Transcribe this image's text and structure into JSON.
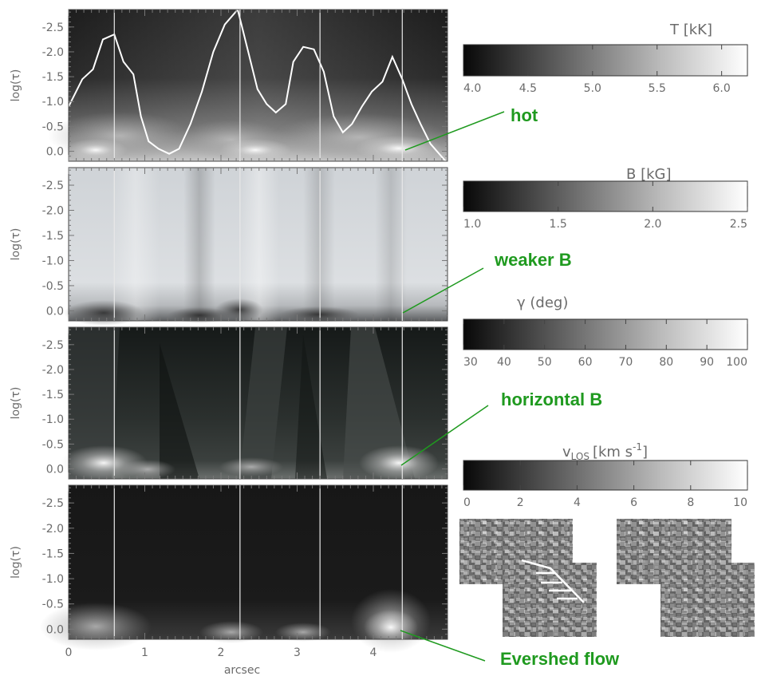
{
  "chart_data": [
    {
      "type": "heatmap",
      "panel": "temperature",
      "ylabel": "log(τ)",
      "xlim": [
        0,
        4.95
      ],
      "ylim": [
        0.2,
        -2.85
      ],
      "yticks": [
        "-2.5",
        "-2.0",
        "-1.5",
        "-1.0",
        "-0.5",
        "0.0"
      ],
      "line": {
        "x": [
          0,
          0.18,
          0.32,
          0.45,
          0.6,
          0.72,
          0.85,
          0.95,
          1.05,
          1.18,
          1.32,
          1.45,
          1.6,
          1.75,
          1.9,
          2.05,
          2.22,
          2.35,
          2.48,
          2.6,
          2.72,
          2.85,
          2.95,
          3.08,
          3.22,
          3.35,
          3.48,
          3.6,
          3.72,
          3.85,
          3.98,
          4.12,
          4.25,
          4.38,
          4.5,
          4.62,
          4.75,
          4.95
        ],
        "y": [
          -0.9,
          -1.45,
          -1.65,
          -2.25,
          -2.35,
          -1.8,
          -1.55,
          -0.7,
          -0.2,
          -0.05,
          0.05,
          -0.05,
          -0.55,
          -1.2,
          -2.0,
          -2.55,
          -2.85,
          -2.05,
          -1.25,
          -0.95,
          -0.78,
          -0.95,
          -1.8,
          -2.1,
          -2.05,
          -1.6,
          -0.7,
          -0.38,
          -0.55,
          -0.9,
          -1.2,
          -1.4,
          -1.9,
          -1.45,
          -0.95,
          -0.55,
          -0.15,
          0.2
        ]
      },
      "colorbar": {
        "title": "T [kK]",
        "ticks": [
          "4.0",
          "4.5",
          "5.0",
          "5.5",
          "6.0"
        ],
        "range": [
          4.0,
          6.2
        ]
      },
      "annotation": "hot"
    },
    {
      "type": "heatmap",
      "panel": "magnetic field strength",
      "ylabel": "log(τ)",
      "yticks": [
        "-2.5",
        "-2.0",
        "-1.5",
        "-1.0",
        "-0.5",
        "0.0"
      ],
      "colorbar": {
        "title": "B [kG]",
        "ticks": [
          "1.0",
          "1.5",
          "2.0",
          "2.5"
        ],
        "range": [
          1.0,
          2.5
        ]
      },
      "annotation": "weaker B"
    },
    {
      "type": "heatmap",
      "panel": "inclination",
      "ylabel": "log(τ)",
      "yticks": [
        "-2.5",
        "-2.0",
        "-1.5",
        "-1.0",
        "-0.5",
        "0.0"
      ],
      "colorbar": {
        "title": "γ (deg)",
        "ticks": [
          "30",
          "40",
          "50",
          "60",
          "70",
          "80",
          "90",
          "100"
        ],
        "range": [
          30,
          100
        ]
      },
      "annotation": "horizontal B"
    },
    {
      "type": "heatmap",
      "panel": "line-of-sight velocity",
      "ylabel": "log(τ)",
      "xlabel": "arcsec",
      "xticks": [
        "0",
        "1",
        "2",
        "3",
        "4"
      ],
      "yticks": [
        "-2.5",
        "-2.0",
        "-1.5",
        "-1.0",
        "-0.5",
        "0.0"
      ],
      "colorbar": {
        "title_main": "v",
        "title_sub": "LOS",
        "title_units": "[km s",
        "title_exp": "-1",
        "title_close": "]",
        "ticks": [
          "0",
          "2",
          "4",
          "6",
          "8",
          "10"
        ],
        "range": [
          0,
          10
        ]
      },
      "annotation": "Evershed flow"
    }
  ],
  "vertical_markers_arcsec": [
    0.6,
    2.25,
    3.3,
    4.38
  ],
  "colors": {
    "annotation": "#1f9a1f",
    "text": "#6b6b6b",
    "frame": "#444444"
  }
}
